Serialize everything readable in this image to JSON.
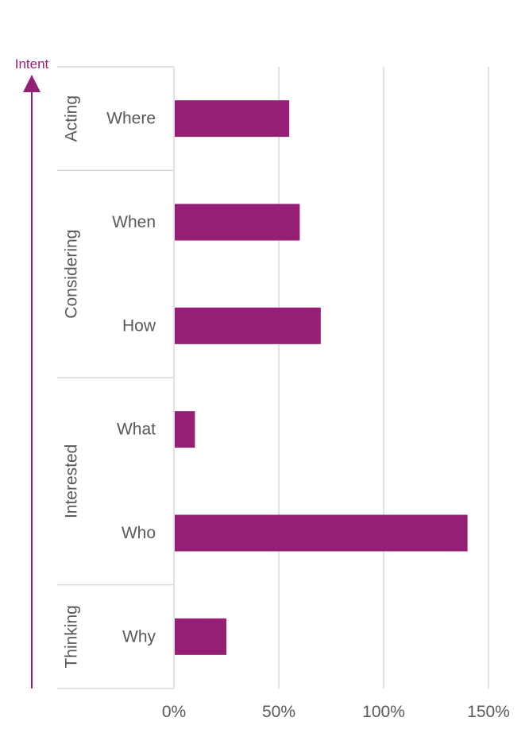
{
  "colors": {
    "bar": "#951f74",
    "grid": "#d9d9d9",
    "text": "#595959",
    "accent": "#951f74"
  },
  "intent_label": "Intent",
  "chart_data": {
    "type": "bar",
    "orientation": "horizontal",
    "title": "",
    "xlabel": "",
    "ylabel": "",
    "xlim": [
      0,
      150
    ],
    "x_ticks": [
      0,
      50,
      100,
      150
    ],
    "x_tick_labels": [
      "0%",
      "50%",
      "100%",
      "150%"
    ],
    "grid": "vertical",
    "categories": [
      "Where",
      "When",
      "How",
      "What",
      "Who",
      "Why"
    ],
    "values": [
      55,
      60,
      70,
      10,
      140,
      25
    ],
    "groups": [
      {
        "label": "Acting",
        "categories": [
          "Where"
        ]
      },
      {
        "label": "Considering",
        "categories": [
          "When",
          "How"
        ]
      },
      {
        "label": "Interested",
        "categories": [
          "What",
          "Who"
        ]
      },
      {
        "label": "Thinking",
        "categories": [
          "Why"
        ]
      }
    ]
  }
}
